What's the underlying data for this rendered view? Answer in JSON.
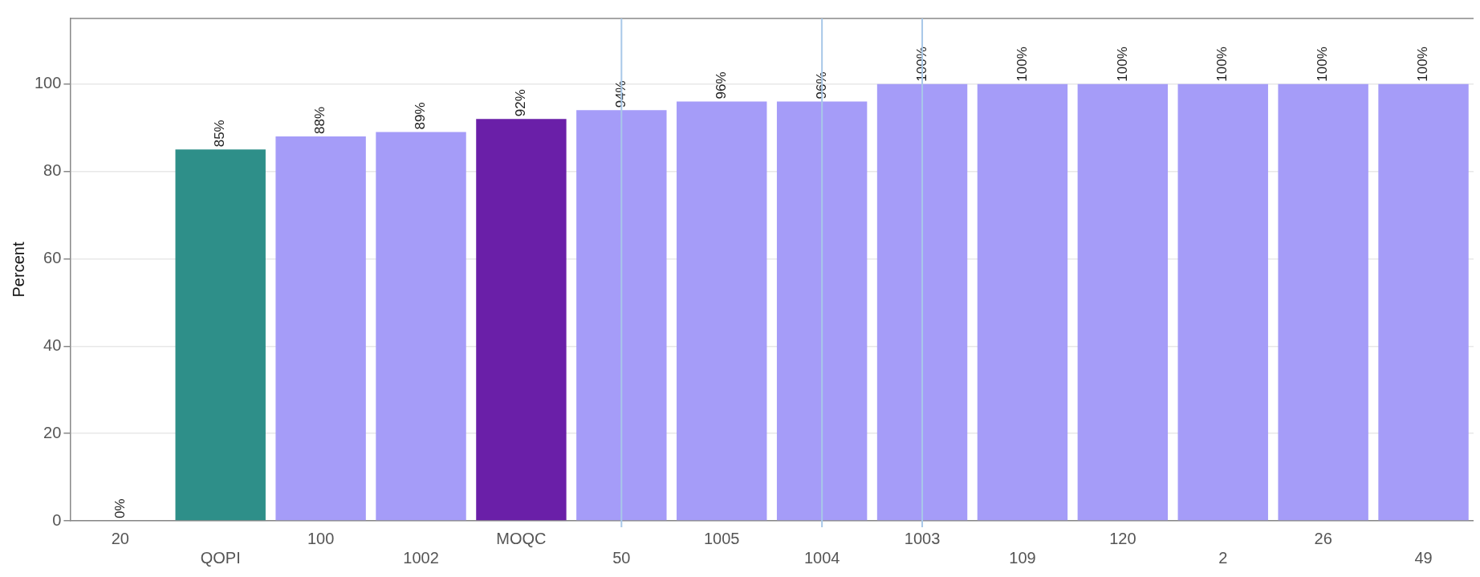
{
  "chart_data": {
    "type": "bar",
    "ylabel": "Percent",
    "categories": [
      "20",
      "QOPI",
      "100",
      "1002",
      "MOQC",
      "50",
      "1005",
      "1004",
      "1003",
      "109",
      "120",
      "2",
      "26",
      "49"
    ],
    "values": [
      0,
      85,
      88,
      89,
      92,
      94,
      96,
      96,
      100,
      100,
      100,
      100,
      100,
      100
    ],
    "colors": [
      "#a59cf8",
      "#2e8f89",
      "#a59cf8",
      "#a59cf8",
      "#6a1fa8",
      "#a59cf8",
      "#a59cf8",
      "#a59cf8",
      "#a59cf8",
      "#a59cf8",
      "#a59cf8",
      "#a59cf8",
      "#a59cf8",
      "#a59cf8"
    ],
    "value_labels": [
      "0%",
      "85%",
      "88%",
      "89%",
      "92%",
      "94%",
      "96%",
      "96%",
      "100%",
      "100%",
      "100%",
      "100%",
      "100%",
      "100%"
    ],
    "ylim": [
      0,
      115
    ],
    "yticks": [
      0,
      20,
      40,
      60,
      80,
      100
    ],
    "grid": "y",
    "legend": false,
    "ref_lines": [
      {
        "axis": "x",
        "value": "50",
        "color": "#a8c8e8"
      },
      {
        "axis": "x",
        "value": "1004",
        "color": "#a8c8e8"
      },
      {
        "axis": "x",
        "value": "1003",
        "color": "#a8c8e8"
      }
    ]
  }
}
